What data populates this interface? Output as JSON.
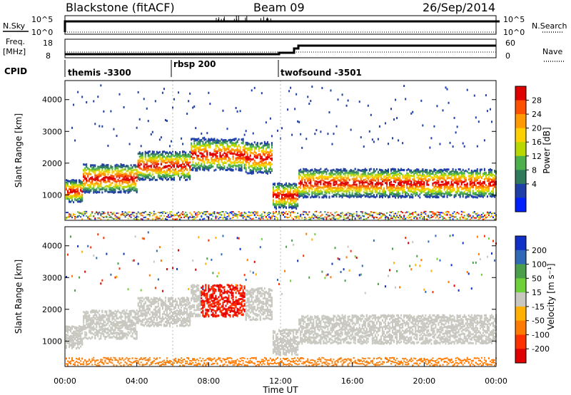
{
  "header": {
    "station": "Blackstone (fitACF)",
    "beam": "Beam 09",
    "date": "26/Sep/2014"
  },
  "summary_panels": {
    "nsky_label": "N.Sky",
    "nsearch_label": "N.Search",
    "noise_ticks": [
      "10^5",
      "10^0"
    ],
    "freq_label": "Freq.",
    "freq_unit": "[MHz]",
    "freq_ticks": [
      "18",
      "8"
    ],
    "nave_label": "Nave",
    "nave_ticks": [
      "60",
      "0"
    ],
    "cpid_label": "CPID"
  },
  "chart_data": [
    {
      "type": "heatmap",
      "name": "power",
      "ylabel": "Slant Range [km]",
      "xlabel": "",
      "ylim": [
        200,
        4600
      ],
      "yticks": [
        "1000",
        "2000",
        "3000",
        "4000"
      ],
      "colorbar": {
        "label": "Power [dB]",
        "ticks": [
          "28",
          "24",
          "20",
          "16",
          "12",
          "8",
          "4"
        ],
        "colors": [
          "#e00000",
          "#ff5000",
          "#ff9a00",
          "#ffd000",
          "#b8d800",
          "#4cb04c",
          "#2f7a5a",
          "#1e3ea8",
          "#0020ff"
        ]
      },
      "scatter_bands": [
        {
          "start_h": 0.0,
          "end_h": 1.0,
          "center_km": 1150,
          "width_km": 350
        },
        {
          "start_h": 1.0,
          "end_h": 4.0,
          "center_km": 1550,
          "width_km": 450
        },
        {
          "start_h": 4.0,
          "end_h": 7.0,
          "center_km": 1950,
          "width_km": 450
        },
        {
          "start_h": 7.0,
          "end_h": 10.0,
          "center_km": 2300,
          "width_km": 500
        },
        {
          "start_h": 10.0,
          "end_h": 11.5,
          "center_km": 2200,
          "width_km": 500
        },
        {
          "start_h": 11.5,
          "end_h": 13.0,
          "center_km": 1000,
          "width_km": 400
        },
        {
          "start_h": 13.0,
          "end_h": 24.0,
          "center_km": 1400,
          "width_km": 450
        }
      ]
    },
    {
      "type": "heatmap",
      "name": "velocity",
      "ylabel": "Slant Range [km]",
      "xlabel": "Time UT",
      "ylim": [
        200,
        4600
      ],
      "yticks": [
        "1000",
        "2000",
        "3000",
        "4000"
      ],
      "xticks": [
        "00:00",
        "04:00",
        "08:00",
        "12:00",
        "16:00",
        "20:00",
        "00:00"
      ],
      "colorbar": {
        "label": "Velocity [m s⁻¹]",
        "ticks": [
          "200",
          "100",
          "50",
          "15",
          "-15",
          "-50",
          "-100",
          "-200"
        ],
        "colors": [
          "#1030c8",
          "#2f6ab8",
          "#4aa04a",
          "#6dd23a",
          "#c8c8c0",
          "#ffb000",
          "#ff7a00",
          "#ff3000",
          "#e00000"
        ]
      }
    }
  ],
  "cpid": [
    {
      "label": "themis -3300",
      "start_h": 0
    },
    {
      "label": "rbsp 200",
      "start_h": 6
    },
    {
      "label": "twofsound -3501",
      "start_h": 12
    }
  ]
}
